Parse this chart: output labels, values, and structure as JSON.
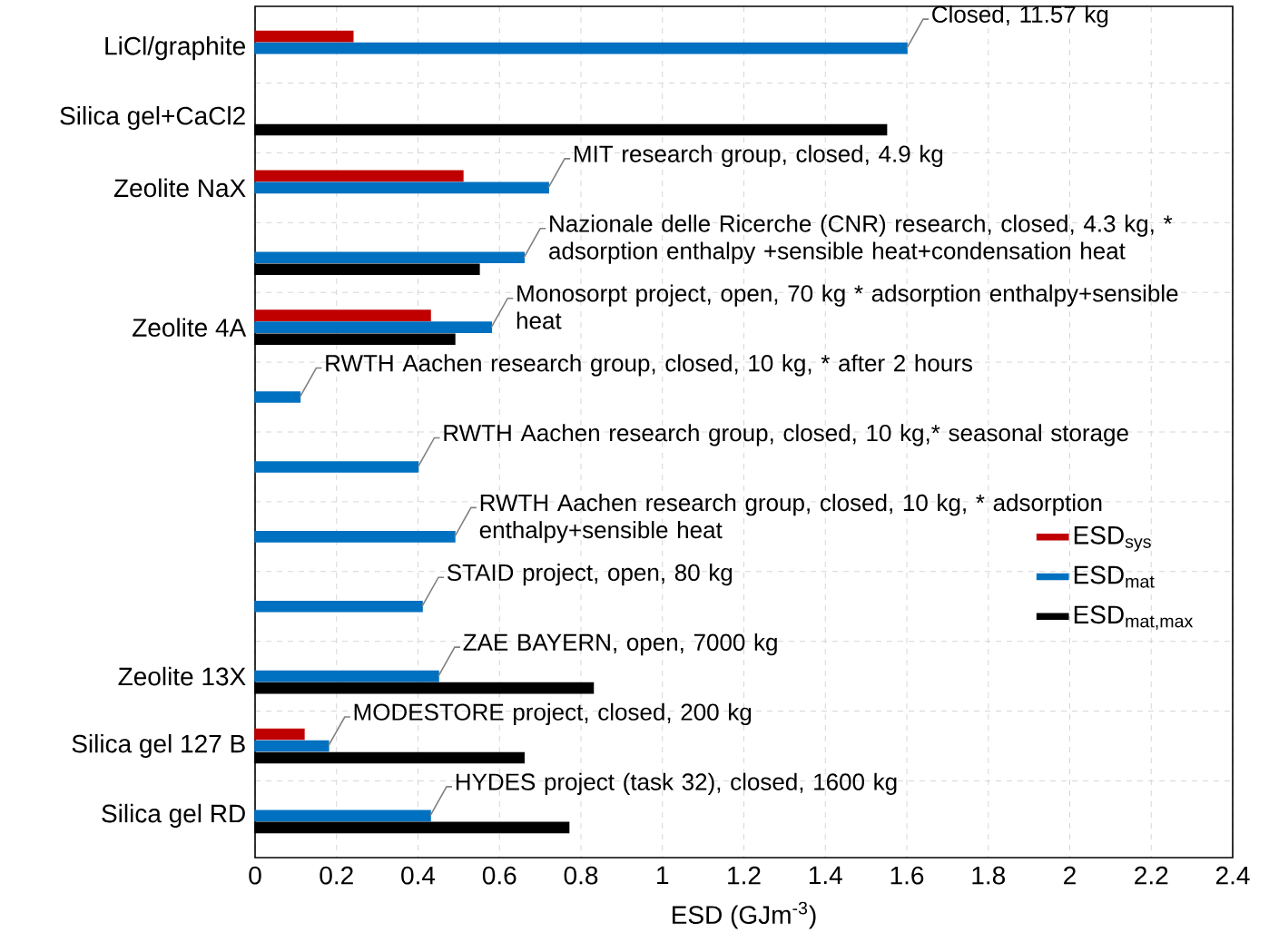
{
  "chart_data": {
    "type": "bar",
    "orientation": "horizontal",
    "categories": [
      "LiCl/graphite",
      "Silica gel+CaCl2",
      "Zeolite NaX",
      null,
      "Zeolite 4A",
      null,
      null,
      null,
      null,
      "Zeolite 13X",
      "Silica gel 127 B",
      "Silica gel RD"
    ],
    "series": [
      {
        "name": "ESD$_{sys}$",
        "color": "#c00000",
        "values": [
          0.24,
          null,
          0.51,
          null,
          0.43,
          null,
          null,
          null,
          null,
          null,
          0.12,
          null
        ]
      },
      {
        "name": "ESD$_{mat}$",
        "color": "#0070c0",
        "values": [
          1.6,
          null,
          0.72,
          0.66,
          0.58,
          0.11,
          0.4,
          0.49,
          0.41,
          0.45,
          0.18,
          0.43
        ]
      },
      {
        "name": "ESD$_{mat,max}$",
        "color": "#000000",
        "values": [
          null,
          1.55,
          null,
          0.55,
          0.49,
          null,
          null,
          null,
          null,
          0.83,
          0.66,
          0.77
        ]
      }
    ],
    "annotations": [
      {
        "text": "Closed, 11.57 kg",
        "x": 1.6,
        "y": "LiCl/graphite"
      },
      {
        "text": "MIT research group, closed, 4.9 kg",
        "x": 0.72,
        "y": "Zeolite NaX"
      },
      "Nazionale delle Ricerche (CNR) research, closed, 4.3 kg, * adsorption enthalpy +sensible heat+condensation heat",
      {
        "text": "Monosorpt project, open, 70 kg * adsorption enthalpy+sensible heat",
        "x": 0.58,
        "y": "Zeolite 4A"
      },
      "RWTH Aachen research group, closed, 10 kg, * after 2 hours",
      "RWTH Aachen research group, closed, 10 kg,* seasonal storage",
      "RWTH Aachen research group, closed, 10 kg, * adsorption enthalpy+sensible heat",
      "STAID project, open, 80 kg",
      {
        "text": "ZAE BAYERN, open, 7000 kg",
        "x": 0.45,
        "y": "Zeolite 13X"
      },
      {
        "text": "MODESTORE project, closed, 200 kg",
        "x": 0.18,
        "y": "Silica gel 127 B"
      },
      {
        "text": "HYDES project (task 32), closed, 1600 kg",
        "x": 0.43,
        "y": "Silica gel RD"
      }
    ],
    "xlabel": "ESD (GJm$^{-3}$)",
    "xlim": [
      0,
      2.4
    ],
    "xticks": [
      0,
      0.2,
      0.4,
      0.6,
      0.8,
      1,
      1.2,
      1.4,
      1.6,
      1.8,
      2,
      2.2,
      2.4
    ],
    "grid": true,
    "legend": "right"
  }
}
